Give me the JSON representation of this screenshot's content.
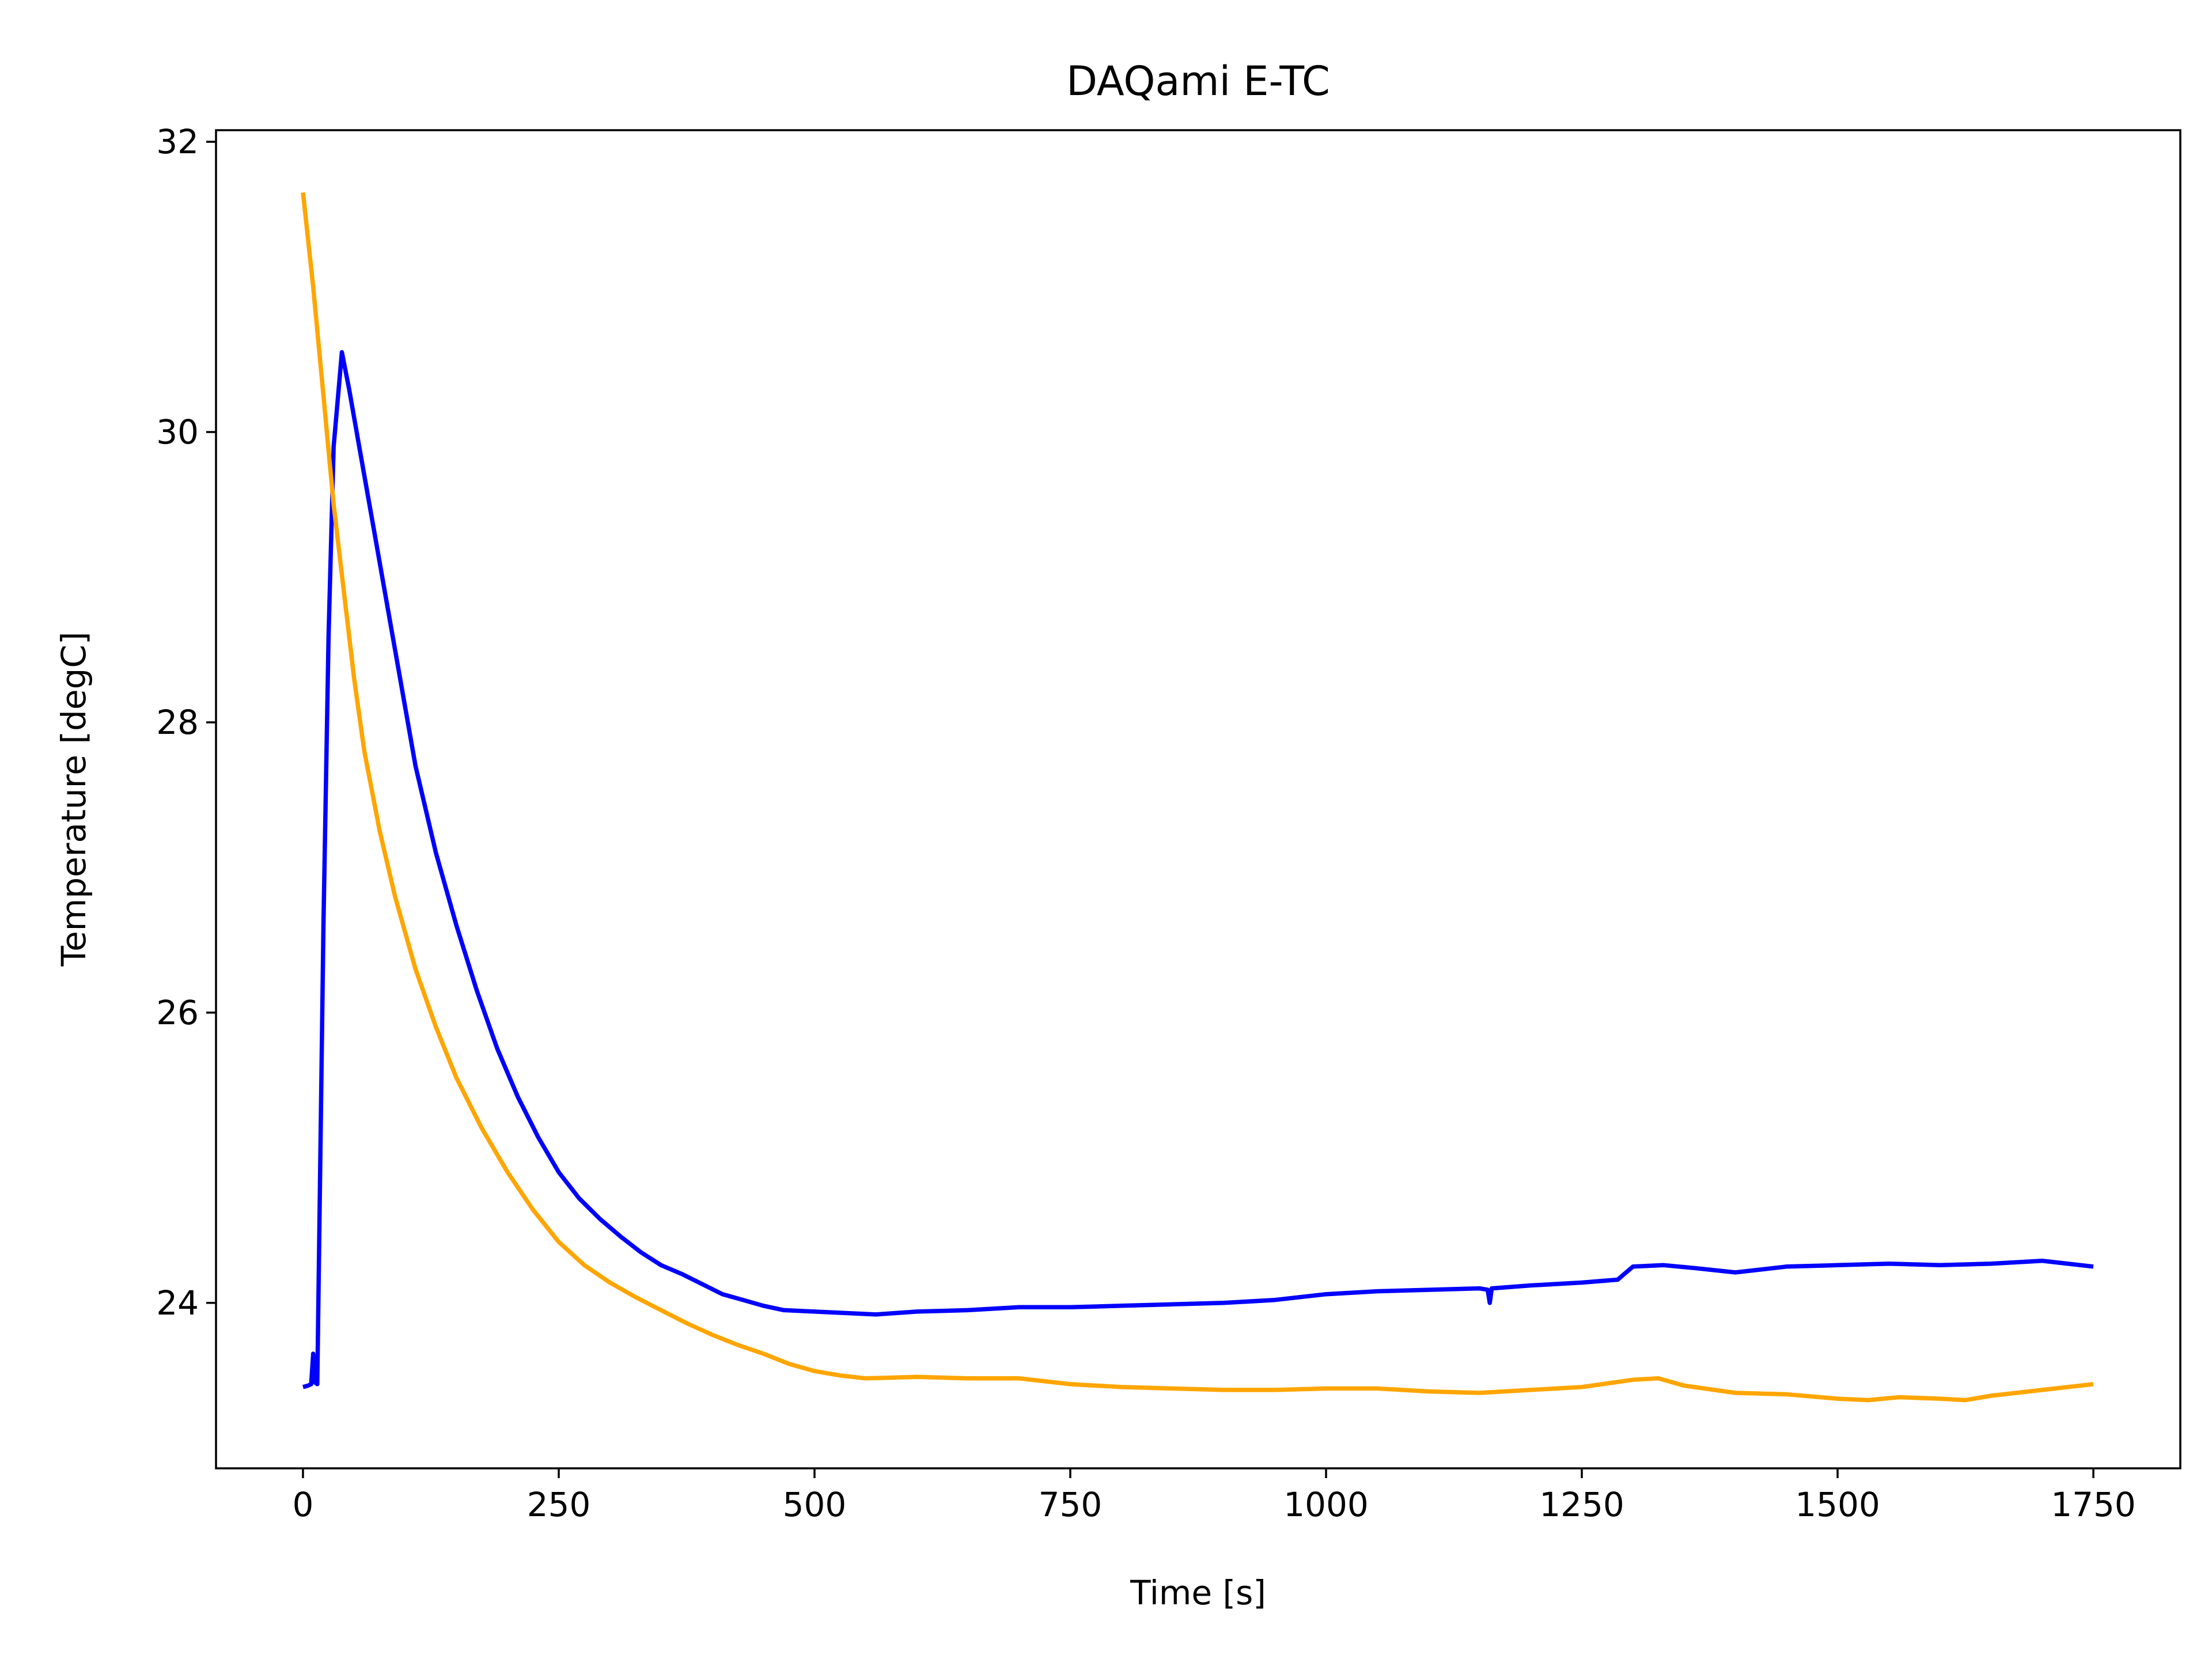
{
  "chart_data": {
    "type": "line",
    "title": "DAQami E-TC",
    "xlabel": "Time [s]",
    "ylabel": "Temperature [degC]",
    "xlim": [
      -85,
      1835
    ],
    "ylim": [
      22.86,
      32.08
    ],
    "xticks": [
      0,
      250,
      500,
      750,
      1000,
      1250,
      1500,
      1750
    ],
    "yticks": [
      24,
      26,
      28,
      30,
      32
    ],
    "grid": false,
    "series": [
      {
        "color": "#0000ff",
        "points": [
          [
            0,
            23.42
          ],
          [
            5,
            23.43
          ],
          [
            8,
            23.44
          ],
          [
            10,
            23.65
          ],
          [
            12,
            23.45
          ],
          [
            14,
            23.44
          ],
          [
            20,
            26.6
          ],
          [
            25,
            28.6
          ],
          [
            30,
            29.9
          ],
          [
            38,
            30.55
          ],
          [
            45,
            30.3
          ],
          [
            55,
            29.9
          ],
          [
            70,
            29.3
          ],
          [
            90,
            28.5
          ],
          [
            110,
            27.7
          ],
          [
            130,
            27.1
          ],
          [
            150,
            26.6
          ],
          [
            170,
            26.15
          ],
          [
            190,
            25.75
          ],
          [
            210,
            25.42
          ],
          [
            230,
            25.14
          ],
          [
            250,
            24.9
          ],
          [
            270,
            24.72
          ],
          [
            290,
            24.58
          ],
          [
            310,
            24.46
          ],
          [
            330,
            24.35
          ],
          [
            350,
            24.26
          ],
          [
            370,
            24.2
          ],
          [
            390,
            24.13
          ],
          [
            410,
            24.06
          ],
          [
            430,
            24.02
          ],
          [
            450,
            23.98
          ],
          [
            470,
            23.95
          ],
          [
            500,
            23.94
          ],
          [
            530,
            23.93
          ],
          [
            560,
            23.92
          ],
          [
            600,
            23.94
          ],
          [
            650,
            23.95
          ],
          [
            700,
            23.97
          ],
          [
            750,
            23.97
          ],
          [
            800,
            23.98
          ],
          [
            850,
            23.99
          ],
          [
            900,
            24.0
          ],
          [
            950,
            24.02
          ],
          [
            1000,
            24.06
          ],
          [
            1050,
            24.08
          ],
          [
            1100,
            24.09
          ],
          [
            1150,
            24.1
          ],
          [
            1158,
            24.09
          ],
          [
            1160,
            24.0
          ],
          [
            1162,
            24.1
          ],
          [
            1200,
            24.12
          ],
          [
            1250,
            24.14
          ],
          [
            1285,
            24.16
          ],
          [
            1300,
            24.25
          ],
          [
            1330,
            24.26
          ],
          [
            1360,
            24.24
          ],
          [
            1400,
            24.21
          ],
          [
            1450,
            24.25
          ],
          [
            1500,
            24.26
          ],
          [
            1550,
            24.27
          ],
          [
            1600,
            24.26
          ],
          [
            1650,
            24.27
          ],
          [
            1700,
            24.29
          ],
          [
            1750,
            24.25
          ]
        ]
      },
      {
        "color": "#ffa500",
        "points": [
          [
            0,
            31.65
          ],
          [
            10,
            31.0
          ],
          [
            20,
            30.25
          ],
          [
            30,
            29.5
          ],
          [
            40,
            28.9
          ],
          [
            50,
            28.3
          ],
          [
            60,
            27.8
          ],
          [
            75,
            27.25
          ],
          [
            90,
            26.8
          ],
          [
            110,
            26.3
          ],
          [
            130,
            25.9
          ],
          [
            150,
            25.55
          ],
          [
            175,
            25.2
          ],
          [
            200,
            24.9
          ],
          [
            225,
            24.64
          ],
          [
            250,
            24.42
          ],
          [
            275,
            24.26
          ],
          [
            300,
            24.14
          ],
          [
            325,
            24.04
          ],
          [
            350,
            23.95
          ],
          [
            375,
            23.86
          ],
          [
            400,
            23.78
          ],
          [
            425,
            23.71
          ],
          [
            450,
            23.65
          ],
          [
            475,
            23.58
          ],
          [
            500,
            23.53
          ],
          [
            525,
            23.5
          ],
          [
            550,
            23.48
          ],
          [
            600,
            23.49
          ],
          [
            650,
            23.48
          ],
          [
            700,
            23.48
          ],
          [
            750,
            23.44
          ],
          [
            800,
            23.42
          ],
          [
            850,
            23.41
          ],
          [
            900,
            23.4
          ],
          [
            950,
            23.4
          ],
          [
            1000,
            23.41
          ],
          [
            1050,
            23.41
          ],
          [
            1100,
            23.39
          ],
          [
            1150,
            23.38
          ],
          [
            1200,
            23.4
          ],
          [
            1250,
            23.42
          ],
          [
            1300,
            23.47
          ],
          [
            1325,
            23.48
          ],
          [
            1350,
            23.43
          ],
          [
            1400,
            23.38
          ],
          [
            1450,
            23.37
          ],
          [
            1500,
            23.34
          ],
          [
            1530,
            23.33
          ],
          [
            1560,
            23.35
          ],
          [
            1600,
            23.34
          ],
          [
            1625,
            23.33
          ],
          [
            1650,
            23.36
          ],
          [
            1700,
            23.4
          ],
          [
            1750,
            23.44
          ]
        ]
      }
    ]
  }
}
